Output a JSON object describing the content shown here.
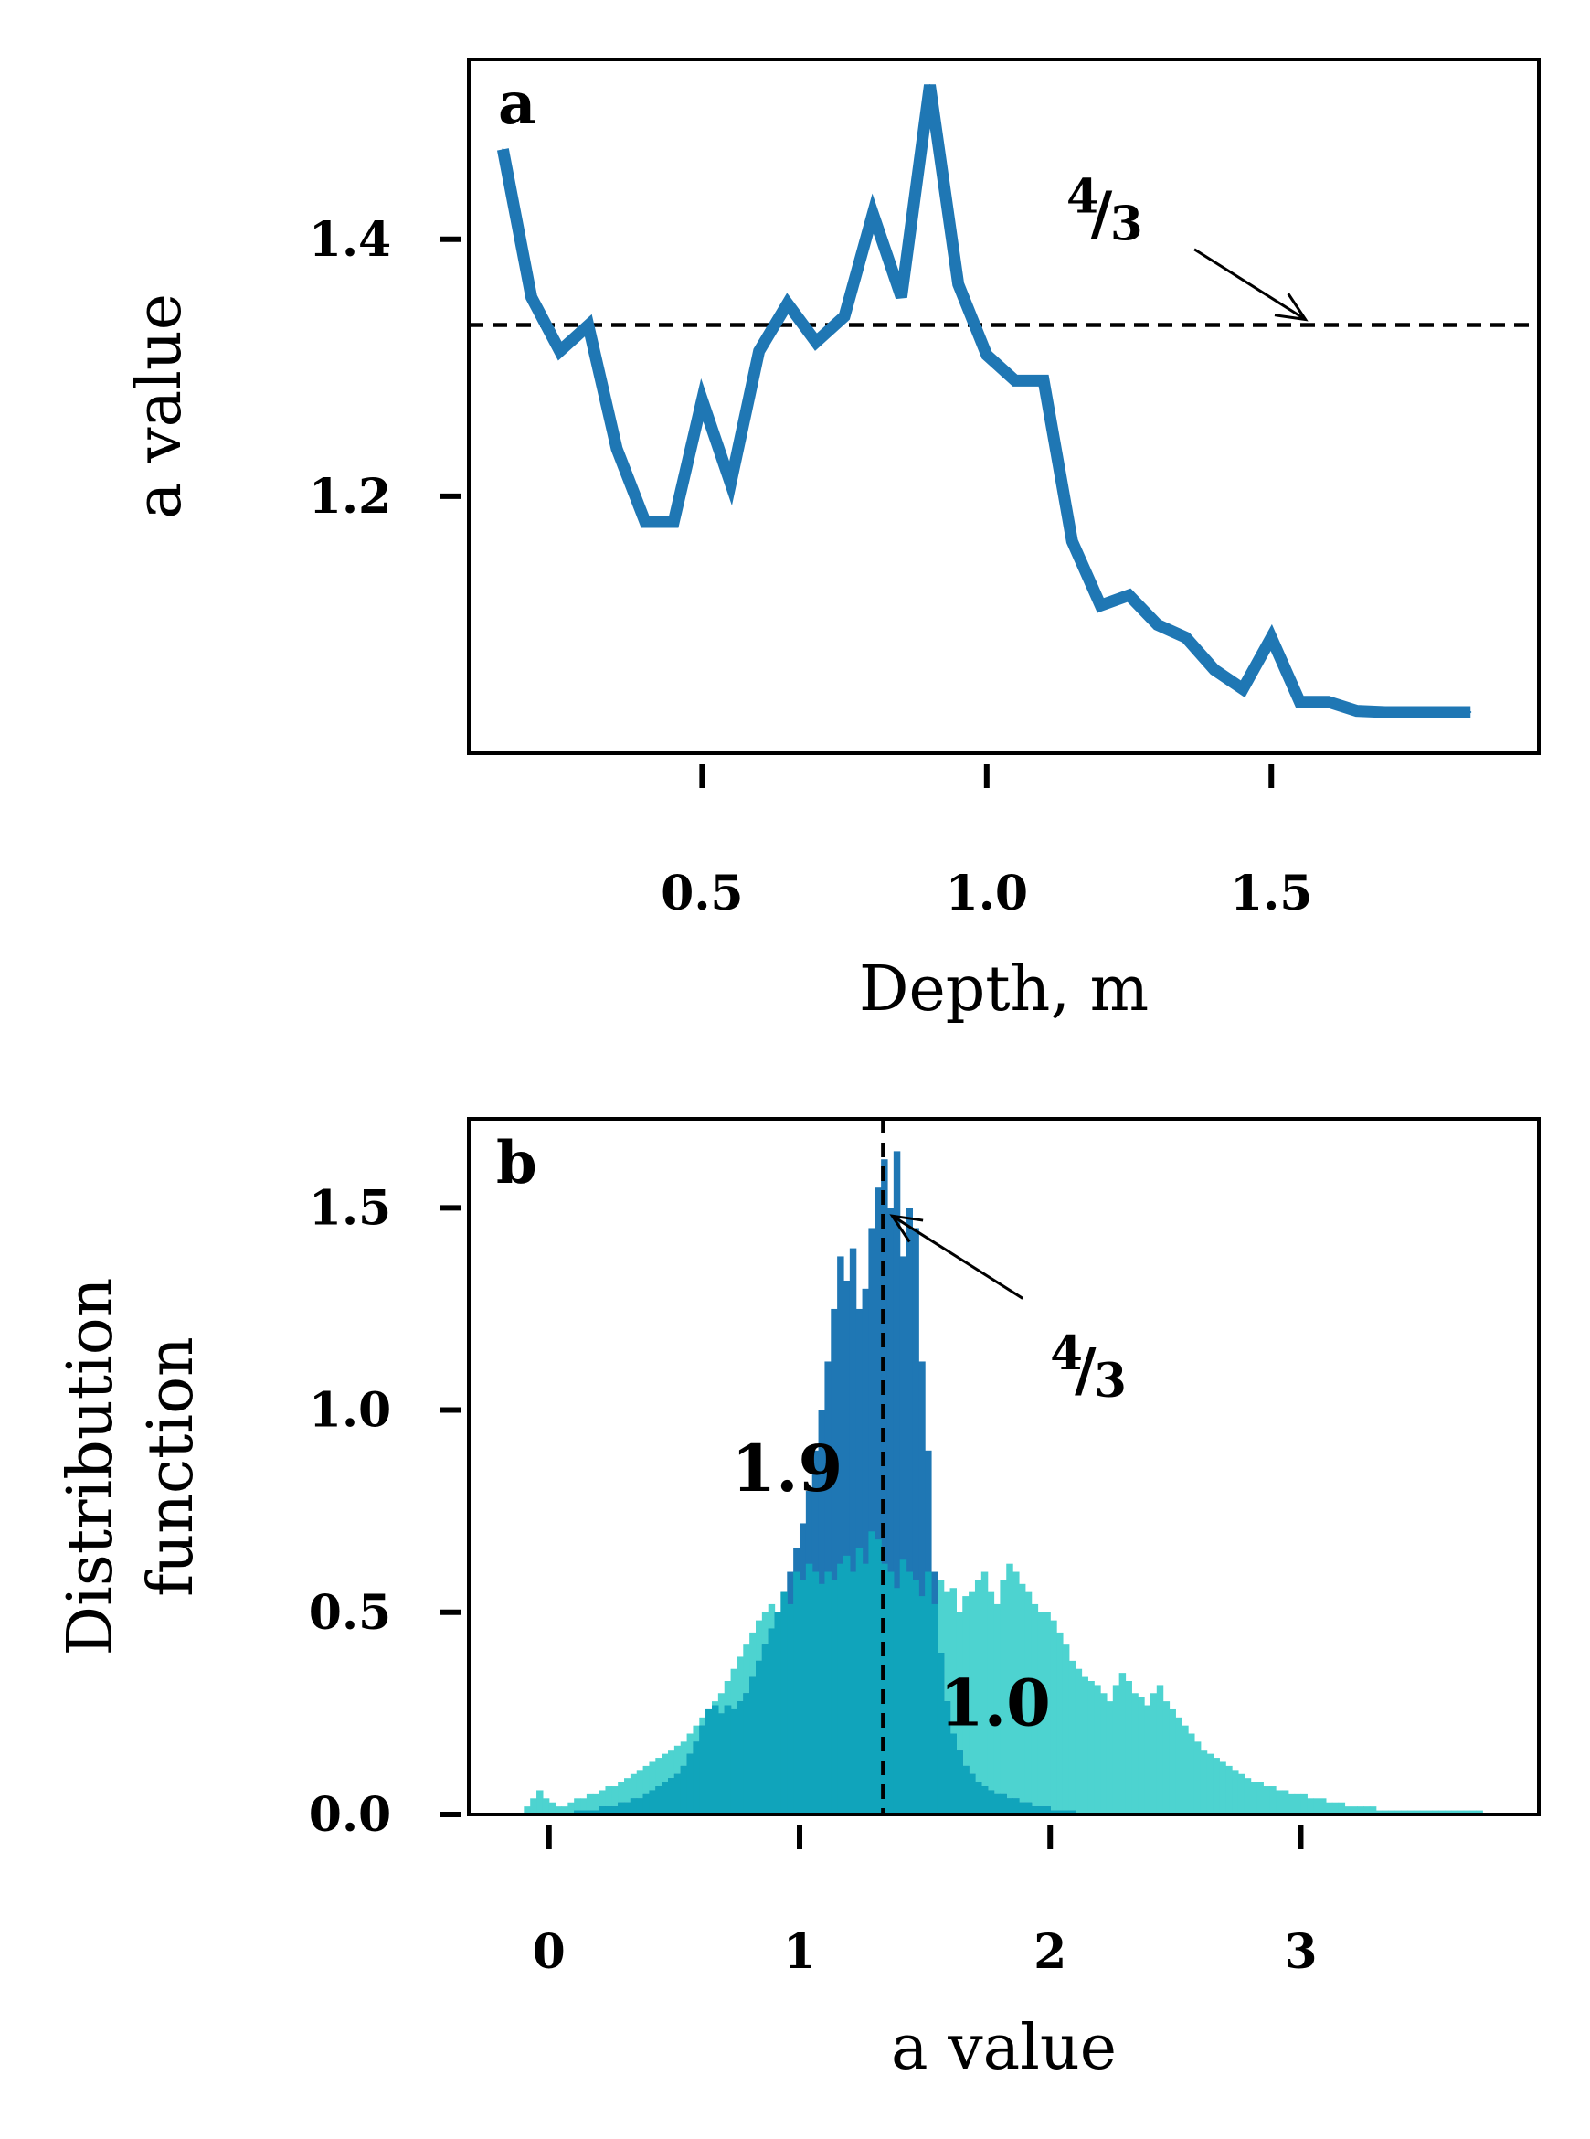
{
  "chart_data": [
    {
      "type": "line",
      "panel_label": "a",
      "xlabel": "Depth, m",
      "ylabel": "a value",
      "xlim": [
        0.09,
        1.97
      ],
      "ylim": [
        1.0,
        1.54
      ],
      "xticks": [
        0.5,
        1.0,
        1.5
      ],
      "xtick_labels": [
        "0.5",
        "1.0",
        "1.5"
      ],
      "yticks": [
        1.2,
        1.4
      ],
      "ytick_labels": [
        "1.2",
        "1.4"
      ],
      "series_color": "#1f77b4",
      "x": [
        0.15,
        0.2,
        0.25,
        0.3,
        0.35,
        0.4,
        0.45,
        0.5,
        0.55,
        0.6,
        0.65,
        0.7,
        0.75,
        0.8,
        0.85,
        0.9,
        0.95,
        1.0,
        1.05,
        1.1,
        1.15,
        1.2,
        1.25,
        1.3,
        1.35,
        1.4,
        1.45,
        1.5,
        1.55,
        1.6,
        1.65,
        1.7,
        1.75,
        1.8,
        1.85
      ],
      "y": [
        1.47,
        1.355,
        1.313,
        1.333,
        1.237,
        1.18,
        1.18,
        1.275,
        1.21,
        1.313,
        1.35,
        1.32,
        1.34,
        1.42,
        1.355,
        1.52,
        1.365,
        1.31,
        1.29,
        1.29,
        1.165,
        1.115,
        1.123,
        1.1,
        1.09,
        1.065,
        1.05,
        1.09,
        1.04,
        1.04,
        1.033,
        1.032,
        1.032,
        1.032,
        1.032
      ],
      "reference_line": {
        "y": 1.3333,
        "style": "dashed",
        "color": "#000000"
      },
      "annotation": {
        "numerator": "4",
        "slash": "/",
        "denominator": "3",
        "arrow_target": [
          1.56,
          1.3333
        ],
        "text_at": [
          1.14,
          1.405
        ]
      }
    },
    {
      "type": "histogram",
      "panel_label": "b",
      "xlabel": "a value",
      "ylabel_lines": [
        "Distribution",
        "function"
      ],
      "xlim": [
        -0.32,
        3.95
      ],
      "ylim": [
        0.0,
        1.72
      ],
      "xticks": [
        0,
        1,
        2,
        3
      ],
      "xtick_labels": [
        "0",
        "1",
        "2",
        "3"
      ],
      "yticks": [
        0.0,
        0.5,
        1.0,
        1.5
      ],
      "ytick_labels": [
        "0.0",
        "0.5",
        "1.0",
        "1.5"
      ],
      "bin_width": 0.025,
      "series": [
        {
          "label": "1.9",
          "label_at": [
            0.95,
            0.8
          ],
          "color": "#1f77b4",
          "bin_start": 0.1,
          "values": [
            0.01,
            0.01,
            0.01,
            0.01,
            0.02,
            0.02,
            0.02,
            0.03,
            0.03,
            0.04,
            0.04,
            0.05,
            0.06,
            0.07,
            0.08,
            0.09,
            0.1,
            0.12,
            0.15,
            0.18,
            0.22,
            0.26,
            0.27,
            0.25,
            0.27,
            0.26,
            0.28,
            0.3,
            0.34,
            0.38,
            0.42,
            0.46,
            0.5,
            0.55,
            0.6,
            0.66,
            0.72,
            0.8,
            0.9,
            1.0,
            1.12,
            1.25,
            1.38,
            1.32,
            1.4,
            1.25,
            1.3,
            1.45,
            1.55,
            1.62,
            1.5,
            1.64,
            1.38,
            1.5,
            1.45,
            1.12,
            0.9,
            0.6,
            0.4,
            0.28,
            0.2,
            0.16,
            0.12,
            0.1,
            0.08,
            0.07,
            0.06,
            0.05,
            0.05,
            0.04,
            0.04,
            0.03,
            0.03,
            0.02,
            0.02,
            0.02,
            0.01,
            0.01,
            0.01,
            0.01
          ]
        },
        {
          "label": "1.0",
          "label_at": [
            1.78,
            0.22
          ],
          "color": "#4dd3d0",
          "bin_start": -0.1,
          "values": [
            0.02,
            0.04,
            0.06,
            0.04,
            0.03,
            0.02,
            0.02,
            0.03,
            0.04,
            0.04,
            0.05,
            0.05,
            0.06,
            0.07,
            0.07,
            0.08,
            0.09,
            0.1,
            0.11,
            0.12,
            0.13,
            0.14,
            0.15,
            0.16,
            0.17,
            0.18,
            0.2,
            0.22,
            0.24,
            0.26,
            0.28,
            0.3,
            0.33,
            0.36,
            0.39,
            0.42,
            0.45,
            0.48,
            0.5,
            0.52,
            0.5,
            0.55,
            0.52,
            0.6,
            0.58,
            0.62,
            0.6,
            0.57,
            0.6,
            0.58,
            0.62,
            0.64,
            0.6,
            0.66,
            0.62,
            0.7,
            0.68,
            0.62,
            0.6,
            0.56,
            0.63,
            0.6,
            0.58,
            0.54,
            0.6,
            0.52,
            0.58,
            0.55,
            0.56,
            0.5,
            0.54,
            0.55,
            0.58,
            0.6,
            0.55,
            0.52,
            0.58,
            0.62,
            0.6,
            0.57,
            0.55,
            0.52,
            0.5,
            0.5,
            0.48,
            0.45,
            0.42,
            0.38,
            0.36,
            0.34,
            0.33,
            0.32,
            0.3,
            0.28,
            0.32,
            0.35,
            0.33,
            0.3,
            0.29,
            0.27,
            0.3,
            0.32,
            0.28,
            0.26,
            0.24,
            0.22,
            0.2,
            0.18,
            0.16,
            0.15,
            0.14,
            0.13,
            0.12,
            0.11,
            0.1,
            0.09,
            0.08,
            0.08,
            0.07,
            0.07,
            0.06,
            0.06,
            0.05,
            0.05,
            0.05,
            0.04,
            0.04,
            0.04,
            0.03,
            0.03,
            0.03,
            0.02,
            0.02,
            0.02,
            0.02,
            0.02,
            0.01,
            0.01,
            0.01,
            0.01,
            0.01,
            0.01,
            0.01,
            0.01,
            0.01,
            0.01,
            0.01,
            0.01,
            0.01,
            0.01,
            0.01,
            0.01,
            0.01
          ]
        }
      ],
      "overlap_color": "#10a4bb",
      "reference_line": {
        "x": 1.3333,
        "style": "dashed",
        "color": "#000000"
      },
      "annotation": {
        "numerator": "4",
        "slash": "/",
        "denominator": "3",
        "arrow_target": [
          1.37,
          1.48
        ],
        "text_at": [
          2.0,
          1.05
        ]
      }
    }
  ]
}
